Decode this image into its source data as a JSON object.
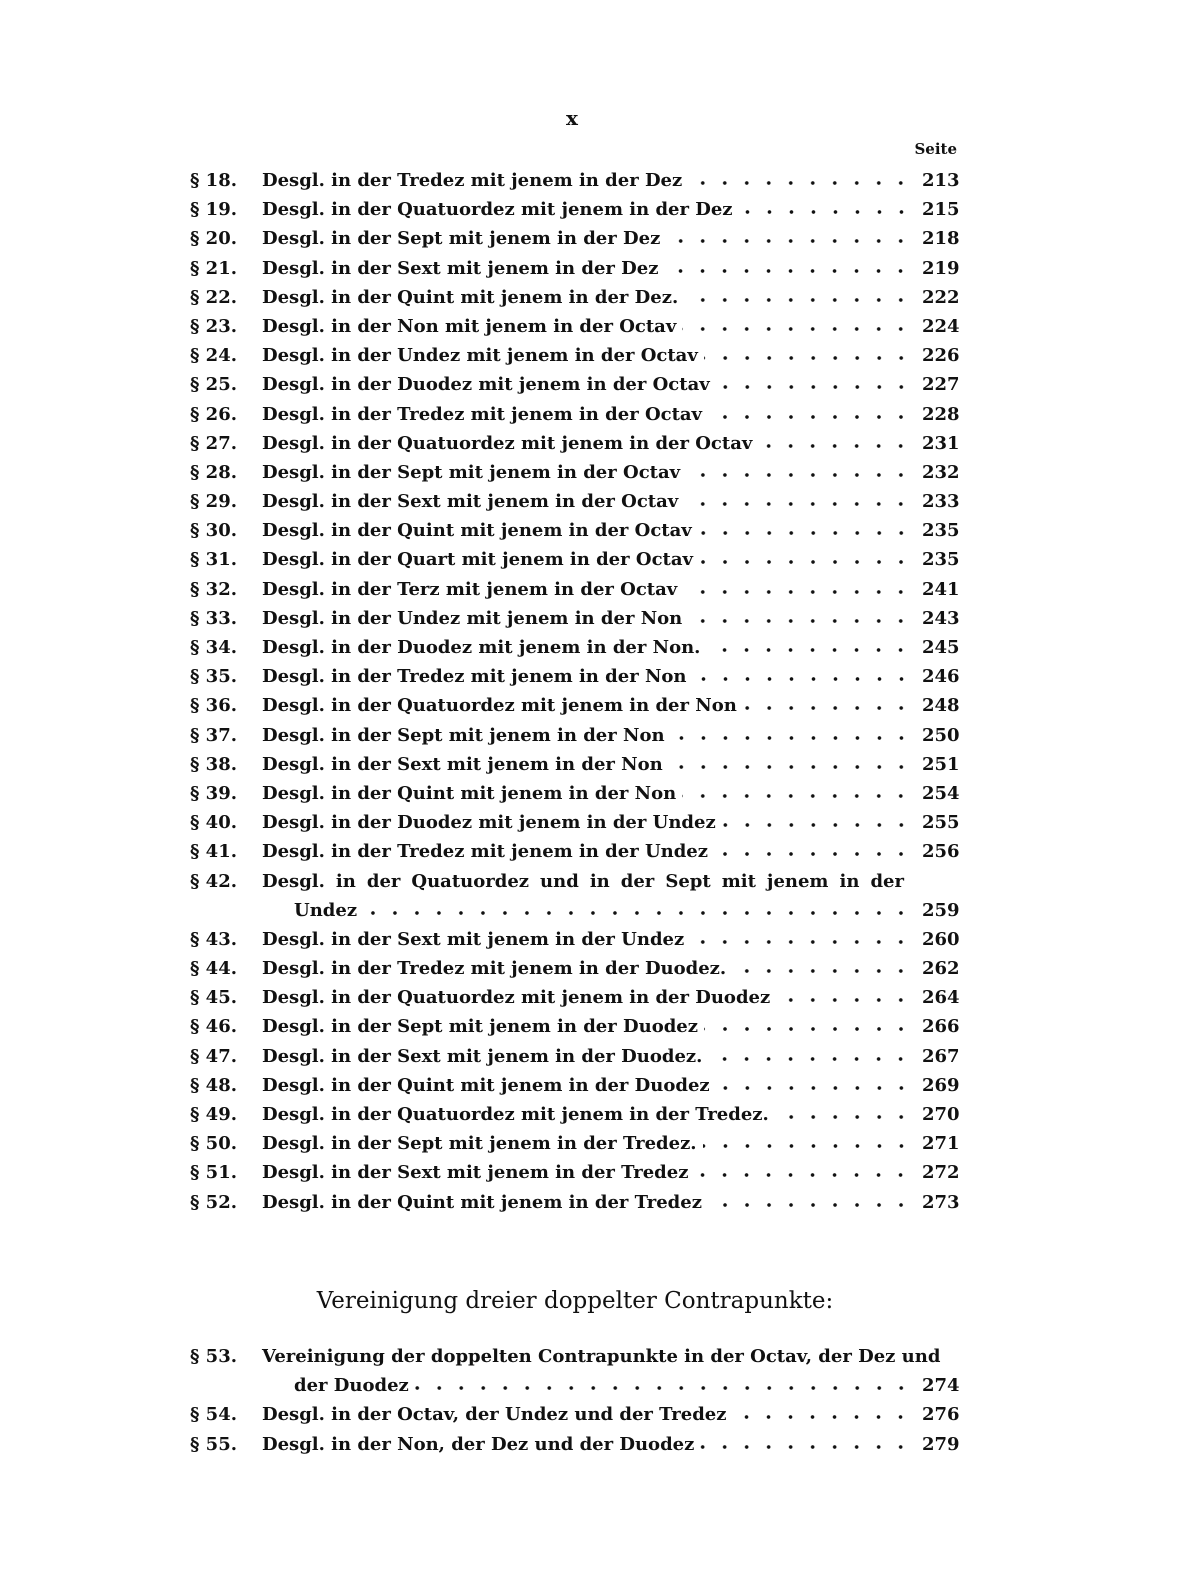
{
  "header": {
    "page_number": "x",
    "column_label": "Seite"
  },
  "entries_top": [
    {
      "num": "§ 18.",
      "title": "Desgl. in der Tredez mit jenem in der Dez",
      "page": "213"
    },
    {
      "num": "§ 19.",
      "title": "Desgl. in der Quatuordez mit jenem in der Dez",
      "page": "215"
    },
    {
      "num": "§ 20.",
      "title": "Desgl. in der Sept mit jenem in der Dez",
      "page": "218"
    },
    {
      "num": "§ 21.",
      "title": "Desgl. in der Sext mit jenem in der Dez",
      "page": "219"
    },
    {
      "num": "§ 22.",
      "title": "Desgl. in der Quint mit jenem in der Dez.",
      "page": "222"
    },
    {
      "num": "§ 23.",
      "title": "Desgl. in der Non mit jenem in der Octav",
      "page": "224"
    },
    {
      "num": "§ 24.",
      "title": "Desgl. in der Undez mit jenem in der Octav",
      "page": "226"
    },
    {
      "num": "§ 25.",
      "title": "Desgl. in der Duodez mit jenem in der Octav",
      "page": "227"
    },
    {
      "num": "§ 26.",
      "title": "Desgl. in der Tredez mit jenem in der Octav",
      "page": "228"
    },
    {
      "num": "§ 27.",
      "title": "Desgl. in der Quatuordez mit jenem in der Octav",
      "page": "231"
    },
    {
      "num": "§ 28.",
      "title": "Desgl. in der Sept mit jenem in der Octav",
      "page": "232"
    },
    {
      "num": "§ 29.",
      "title": "Desgl. in der Sext mit jenem in der Octav",
      "page": "233"
    },
    {
      "num": "§ 30.",
      "title": "Desgl. in der Quint mit jenem in der Octav",
      "page": "235"
    },
    {
      "num": "§ 31.",
      "title": "Desgl. in der Quart mit jenem in der Octav",
      "page": "235"
    },
    {
      "num": "§ 32.",
      "title": "Desgl. in der Terz mit jenem in der Octav",
      "page": "241"
    },
    {
      "num": "§ 33.",
      "title": "Desgl. in der Undez mit jenem in der Non",
      "page": "243"
    },
    {
      "num": "§ 34.",
      "title": "Desgl. in der Duodez mit jenem in der Non.",
      "page": "245"
    },
    {
      "num": "§ 35.",
      "title": "Desgl. in der Tredez mit jenem in der Non",
      "page": "246"
    },
    {
      "num": "§ 36.",
      "title": "Desgl. in der Quatuordez mit jenem in der Non",
      "page": "248"
    },
    {
      "num": "§ 37.",
      "title": "Desgl. in der Sept mit jenem in der Non",
      "page": "250"
    },
    {
      "num": "§ 38.",
      "title": "Desgl. in der Sext mit jenem in der Non",
      "page": "251"
    },
    {
      "num": "§ 39.",
      "title": "Desgl. in der Quint mit jenem in der Non",
      "page": "254"
    },
    {
      "num": "§ 40.",
      "title": "Desgl. in der Duodez mit jenem in der Undez",
      "page": "255"
    },
    {
      "num": "§ 41.",
      "title": "Desgl. in der Tredez mit jenem in der Undez",
      "page": "256"
    },
    {
      "num": "§ 42.",
      "title": "Desgl. in der Quatuordez und in der Sept mit jenem in der",
      "continuation": "Undez",
      "page": "259"
    },
    {
      "num": "§ 43.",
      "title": "Desgl. in der Sext mit jenem in der Undez",
      "page": "260"
    },
    {
      "num": "§ 44.",
      "title": "Desgl. in der Tredez mit jenem in der Duodez.",
      "page": "262"
    },
    {
      "num": "§ 45.",
      "title": "Desgl. in der Quatuordez mit jenem in der Duodez",
      "page": "264"
    },
    {
      "num": "§ 46.",
      "title": "Desgl. in der Sept mit jenem in der Duodez",
      "page": "266"
    },
    {
      "num": "§ 47.",
      "title": "Desgl. in der Sext mit jenem in der Duodez.",
      "page": "267"
    },
    {
      "num": "§ 48.",
      "title": "Desgl. in der Quint mit jenem in der Duodez",
      "page": "269"
    },
    {
      "num": "§ 49.",
      "title": "Desgl. in der Quatuordez mit jenem in der Tredez.",
      "page": "270"
    },
    {
      "num": "§ 50.",
      "title": "Desgl. in der Sept mit jenem in der Tredez.",
      "page": "271"
    },
    {
      "num": "§ 51.",
      "title": "Desgl. in der Sext mit jenem in der Tredez",
      "page": "272"
    },
    {
      "num": "§ 52.",
      "title": "Desgl. in der Quint mit jenem in der Tredez",
      "page": "273"
    }
  ],
  "section_heading": "Vereinigung dreier doppelter Contrapunkte:",
  "entries_bottom": [
    {
      "num": "§ 53.",
      "title": "Vereinigung der doppelten Contrapunkte in der Octav, der Dez und",
      "continuation": "der Duodez",
      "page": "274"
    },
    {
      "num": "§ 54.",
      "title": "Desgl. in der Octav, der Undez und der Tredez",
      "page": "276"
    },
    {
      "num": "§ 55.",
      "title": "Desgl. in der Non, der Dez und der Duodez",
      "page": "279"
    }
  ]
}
